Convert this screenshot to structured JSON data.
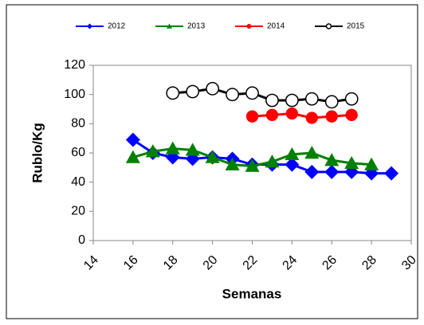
{
  "chart_data": {
    "type": "line",
    "x": [
      16,
      17,
      18,
      19,
      20,
      21,
      22,
      23,
      24,
      25,
      26,
      27,
      28,
      29
    ],
    "series": [
      {
        "name": "2012",
        "color": "#0000ff",
        "marker": "diamond",
        "values": [
          69,
          60,
          57,
          56,
          57,
          56,
          52,
          52,
          52,
          47,
          47,
          47,
          46,
          46
        ]
      },
      {
        "name": "2013",
        "color": "#008000",
        "marker": "triangle",
        "values": [
          57,
          61,
          63,
          62,
          57,
          52,
          51,
          54,
          59,
          60,
          55,
          53,
          52,
          null
        ]
      },
      {
        "name": "2014",
        "color": "#ff0000",
        "marker": "circle",
        "values": [
          null,
          null,
          null,
          null,
          null,
          null,
          85,
          86,
          87,
          84,
          85,
          86,
          null,
          null
        ]
      },
      {
        "name": "2015",
        "color": "#000000",
        "marker": "open-circle",
        "values": [
          null,
          null,
          101,
          102,
          104,
          100,
          101,
          96,
          96,
          97,
          95,
          97,
          null,
          null
        ]
      }
    ],
    "xlabel": "Semanas",
    "ylabel": "Rublo/Kg",
    "xlim": [
      14,
      30
    ],
    "xticks": [
      14,
      16,
      18,
      20,
      22,
      24,
      26,
      28,
      30
    ],
    "ylim": [
      0,
      120
    ],
    "yticks": [
      0,
      20,
      40,
      60,
      80,
      100,
      120
    ],
    "grid": false,
    "legend": "top"
  }
}
